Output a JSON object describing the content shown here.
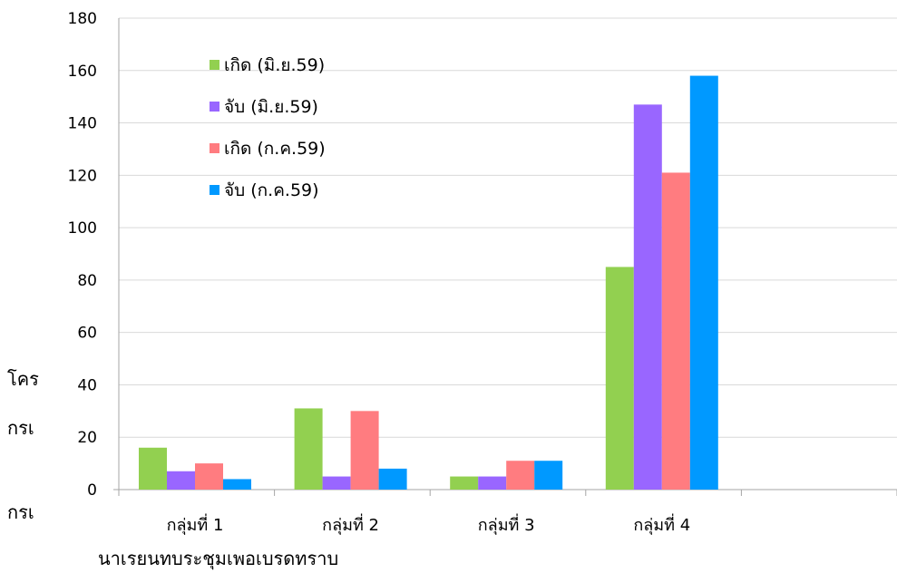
{
  "background_text": {
    "left_fragment_1": "โคร",
    "left_fragment_2": "กรเ",
    "left_fragment_3": "กรเ",
    "bottom_line": "นาเรยนทบระชุมเพอเบรดทราบ"
  },
  "chart_data": {
    "type": "bar",
    "categories": [
      "กลุ่มที่ 1",
      "กลุ่มที่ 2",
      "กลุ่มที่ 3",
      "กลุ่มที่ 4",
      ""
    ],
    "series": [
      {
        "name": "เกิด (มิ.ย.59)",
        "values": [
          16,
          31,
          5,
          85,
          null
        ],
        "color": "#92d050"
      },
      {
        "name": "จับ (มิ.ย.59)",
        "values": [
          7,
          5,
          5,
          147,
          null
        ],
        "color": "#9966ff"
      },
      {
        "name": "เกิด (ก.ค.59)",
        "values": [
          10,
          30,
          11,
          121,
          null
        ],
        "color": "#ff7c80"
      },
      {
        "name": "จับ (ก.ค.59)",
        "values": [
          4,
          8,
          11,
          158,
          null
        ],
        "color": "#0099ff"
      }
    ],
    "ylim": [
      0,
      180
    ],
    "yticks": [
      0,
      20,
      40,
      60,
      80,
      100,
      120,
      140,
      160,
      180
    ],
    "grid": true,
    "legend_position": "top-left"
  }
}
